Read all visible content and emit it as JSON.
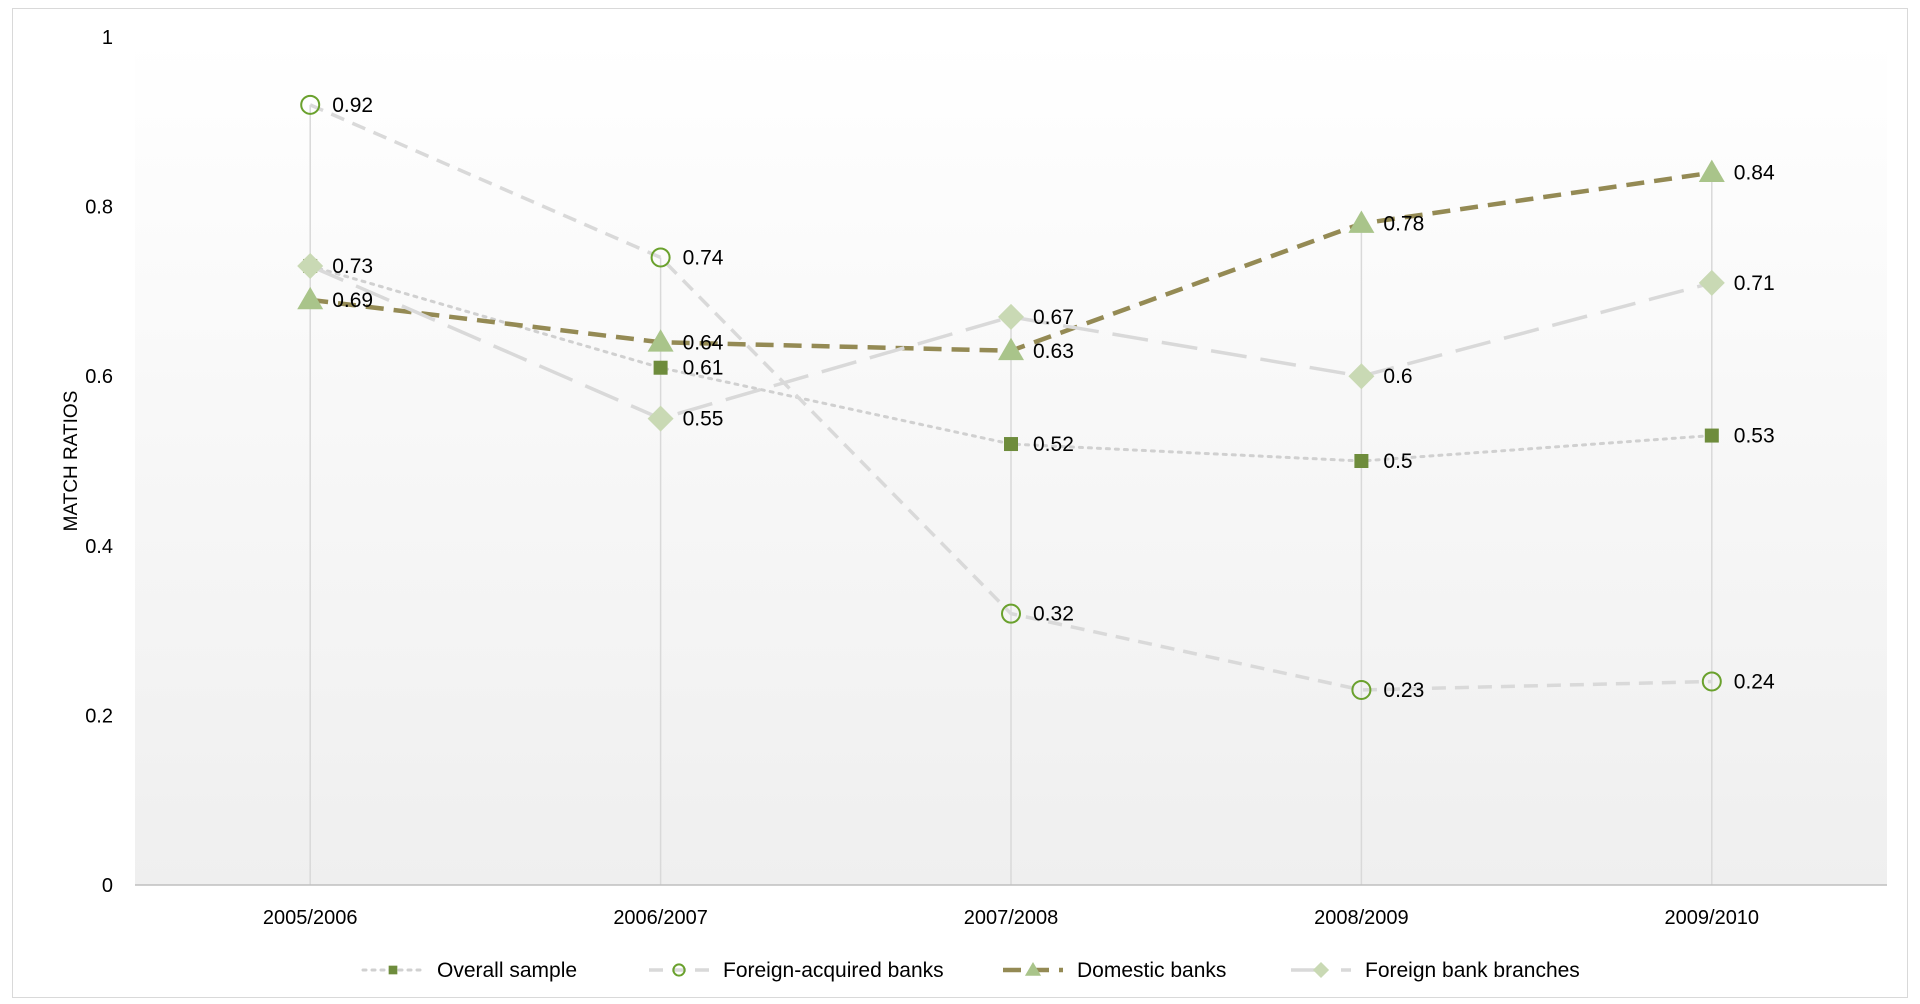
{
  "chart_data": {
    "type": "line",
    "title": "",
    "xlabel": "",
    "ylabel": "MATCH RATIOS",
    "ylim": [
      0,
      1
    ],
    "yticks": [
      "0",
      "0.2",
      "0.4",
      "0.6",
      "0.8",
      "1"
    ],
    "categories": [
      "2005/2006",
      "2006/2007",
      "2007/2008",
      "2008/2009",
      "2009/2010"
    ],
    "grid": "vertical drop lines at each category",
    "legend_position": "bottom",
    "series": [
      {
        "name": "Overall sample",
        "values": [
          0.73,
          0.61,
          0.52,
          0.5,
          0.53
        ],
        "labels": [
          "",
          "0.61",
          "0.52",
          "0.5",
          "0.53"
        ],
        "line_color": "#d0d0d0",
        "marker_color": "#6e8c3c",
        "line_style": "dotted",
        "marker": "square"
      },
      {
        "name": "Foreign-acquired banks",
        "values": [
          0.92,
          0.74,
          0.32,
          0.23,
          0.24
        ],
        "labels": [
          "0.92",
          "0.74",
          "0.32",
          "0.23",
          "0.24"
        ],
        "line_color": "#d9d9d9",
        "marker_color": "#6aa12d",
        "line_style": "dashed",
        "marker": "circle"
      },
      {
        "name": "Domestic banks",
        "values": [
          0.69,
          0.64,
          0.63,
          0.78,
          0.84
        ],
        "labels": [
          "0.69",
          "0.64",
          "0.63",
          "0.78",
          "0.84"
        ],
        "line_color": "#948a54",
        "marker_color": "#a9c48a",
        "line_style": "dashed-bold",
        "marker": "triangle"
      },
      {
        "name": "Foreign bank branches",
        "values": [
          0.73,
          0.55,
          0.67,
          0.6,
          0.71
        ],
        "labels": [
          "0.73",
          "0.55",
          "0.67",
          "0.6",
          "0.71"
        ],
        "line_color": "#d9d9d9",
        "marker_color": "#c9d9b4",
        "line_style": "long-dash",
        "marker": "diamond"
      }
    ]
  }
}
